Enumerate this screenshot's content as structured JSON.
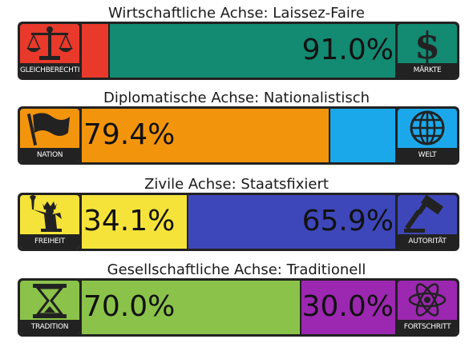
{
  "chart_data": [
    {
      "type": "bar",
      "title": "Wirtschaftliche Achse: Laissez-Faire",
      "left": {
        "label": "GLEICHBERECHTIGUNG",
        "value": 9.0,
        "color": "#e8392b",
        "icon": "scales-icon"
      },
      "right": {
        "label": "MÄRKTE",
        "value": 91.0,
        "value_text": "91.0%",
        "color": "#138a72",
        "icon": "dollar-icon"
      },
      "icon_bg": {
        "left": "#e8392b",
        "right": "#138a72"
      }
    },
    {
      "type": "bar",
      "title": "Diplomatische Achse: Nationalistisch",
      "left": {
        "label": "NATION",
        "value": 79.4,
        "value_text": "79.4%",
        "color": "#f3950c",
        "icon": "flag-icon"
      },
      "right": {
        "label": "WELT",
        "value": 20.6,
        "color": "#1aa8eb",
        "icon": "globe-icon"
      },
      "icon_bg": {
        "left": "#f3950c",
        "right": "#1aa8eb"
      }
    },
    {
      "type": "bar",
      "title": "Zivile Achse: Staatsfixiert",
      "left": {
        "label": "FREIHEIT",
        "value": 34.1,
        "value_text": "34.1%",
        "color": "#f5e33a",
        "icon": "statue-of-liberty-icon"
      },
      "right": {
        "label": "AUTORITÄT",
        "value": 65.9,
        "value_text": "65.9%",
        "color": "#3e47b9",
        "icon": "gavel-icon"
      },
      "icon_bg": {
        "left": "#f5e33a",
        "right": "#3e47b9"
      }
    },
    {
      "type": "bar",
      "title": "Gesellschaftliche Achse: Traditionell",
      "left": {
        "label": "TRADITION",
        "value": 70.0,
        "value_text": "70.0%",
        "color": "#8bc34a",
        "icon": "hourglass-icon"
      },
      "right": {
        "label": "FORTSCHRITT",
        "value": 30.0,
        "value_text": "30.0%",
        "color": "#9c27b0",
        "icon": "atom-icon"
      },
      "icon_bg": {
        "left": "#8bc34a",
        "right": "#9c27b0"
      }
    }
  ]
}
